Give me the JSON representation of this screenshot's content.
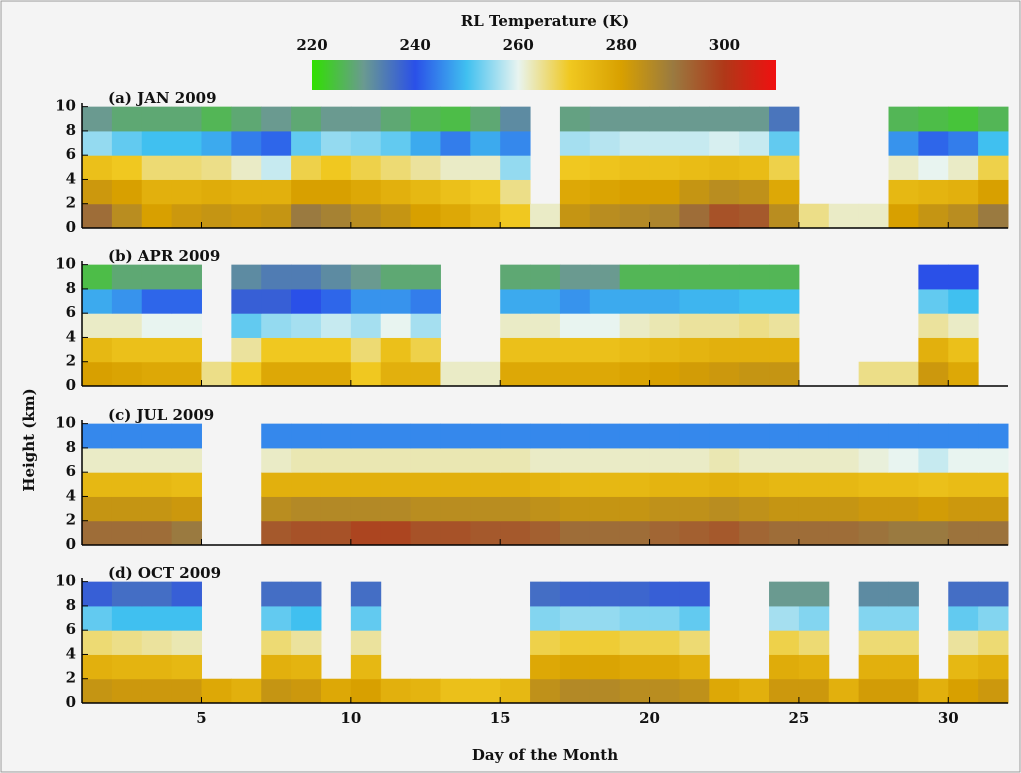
{
  "colorbar": {
    "title": "RL Temperature (K)",
    "clim": [
      220,
      310
    ],
    "ticks": [
      220,
      240,
      260,
      280,
      300
    ],
    "colors": [
      "#30e000",
      "#6a9a90",
      "#2a50e8",
      "#40c0f0",
      "#e8f4f0",
      "#f0c820",
      "#d8a000",
      "#9a7a40",
      "#b03818",
      "#f01010"
    ]
  },
  "ylabel": "Height (km)",
  "xlabel": "Day of the Month",
  "chart_data": [
    {
      "type": "heatmap",
      "title": "(a) JAN 2009",
      "xlim": [
        1,
        32
      ],
      "ylim": [
        0,
        10.3
      ],
      "xticks": [
        5,
        10,
        15,
        20,
        25,
        30
      ],
      "yticks": [
        0,
        2,
        4,
        6,
        8,
        10
      ],
      "x": [
        1,
        2,
        3,
        4,
        5,
        6,
        7,
        8,
        9,
        10,
        11,
        12,
        13,
        14,
        15,
        16,
        17,
        18,
        19,
        20,
        21,
        22,
        23,
        24,
        25,
        26,
        27,
        28,
        29,
        30,
        31,
        32
      ],
      "y": [
        0,
        2,
        4,
        6,
        8,
        10
      ],
      "values": [
        [
          292,
          285,
          280,
          282,
          283,
          282,
          283,
          290,
          288,
          285,
          283,
          280,
          278,
          275,
          270,
          262,
          283,
          285,
          286,
          287,
          292,
          296,
          295,
          285,
          265,
          262,
          262,
          280,
          283,
          285,
          290
        ],
        [
          282,
          280,
          276,
          276,
          277,
          276,
          276,
          280,
          280,
          278,
          276,
          274,
          272,
          270,
          265,
          null,
          278,
          279,
          280,
          280,
          283,
          285,
          284,
          278,
          null,
          null,
          null,
          274,
          275,
          276,
          280
        ],
        [
          272,
          270,
          266,
          266,
          265,
          262,
          258,
          268,
          270,
          268,
          266,
          264,
          262,
          262,
          255,
          null,
          270,
          271,
          272,
          272,
          273,
          274,
          273,
          268,
          null,
          null,
          null,
          262,
          260,
          262,
          268
        ],
        [
          255,
          252,
          250,
          250,
          248,
          244,
          242,
          252,
          255,
          254,
          252,
          248,
          244,
          248,
          245,
          null,
          256,
          257,
          258,
          258,
          258,
          259,
          258,
          252,
          null,
          null,
          null,
          246,
          242,
          244,
          250
        ],
        [
          230,
          228,
          228,
          228,
          226,
          228,
          230,
          228,
          230,
          230,
          228,
          226,
          225,
          228,
          232,
          null,
          229,
          230,
          230,
          230,
          230,
          230,
          230,
          235,
          null,
          null,
          null,
          226,
          225,
          224,
          226
        ]
      ]
    },
    {
      "type": "heatmap",
      "title": "(b) APR 2009",
      "xlim": [
        1,
        32
      ],
      "ylim": [
        0,
        10.3
      ],
      "xticks": [
        5,
        10,
        15,
        20,
        25,
        30
      ],
      "yticks": [
        0,
        2,
        4,
        6,
        8,
        10
      ],
      "x": [
        1,
        2,
        3,
        4,
        5,
        6,
        7,
        8,
        9,
        10,
        11,
        12,
        13,
        14,
        15,
        16,
        17,
        18,
        19,
        20,
        21,
        22,
        23,
        24,
        25,
        26,
        27,
        28,
        29,
        30,
        31,
        32
      ],
      "y": [
        0,
        2,
        4,
        6,
        8,
        10
      ],
      "values": [
        [
          280,
          279,
          278,
          278,
          265,
          270,
          278,
          278,
          278,
          270,
          276,
          276,
          262,
          262,
          278,
          278,
          278,
          278,
          279,
          280,
          281,
          282,
          283,
          283,
          null,
          null,
          265,
          265,
          282,
          278,
          null
        ],
        [
          274,
          272,
          272,
          272,
          null,
          264,
          270,
          270,
          270,
          266,
          272,
          268,
          null,
          null,
          272,
          272,
          272,
          272,
          273,
          274,
          275,
          276,
          276,
          276,
          null,
          null,
          null,
          null,
          276,
          272,
          null
        ],
        [
          262,
          262,
          260,
          260,
          null,
          252,
          255,
          256,
          258,
          256,
          260,
          256,
          null,
          null,
          262,
          262,
          260,
          260,
          262,
          263,
          264,
          264,
          265,
          264,
          null,
          null,
          null,
          null,
          264,
          262,
          null
        ],
        [
          248,
          246,
          242,
          242,
          null,
          238,
          238,
          240,
          242,
          246,
          246,
          244,
          null,
          null,
          248,
          248,
          246,
          248,
          248,
          248,
          249,
          249,
          250,
          250,
          null,
          null,
          null,
          null,
          252,
          250,
          null
        ],
        [
          225,
          228,
          228,
          228,
          null,
          232,
          234,
          234,
          232,
          230,
          228,
          228,
          null,
          null,
          228,
          228,
          230,
          230,
          226,
          226,
          226,
          226,
          226,
          226,
          null,
          null,
          null,
          null,
          240,
          240,
          null
        ]
      ]
    },
    {
      "type": "heatmap",
      "title": "(c) JUL 2009",
      "xlim": [
        1,
        32
      ],
      "ylim": [
        0,
        10.3
      ],
      "xticks": [
        5,
        10,
        15,
        20,
        25,
        30
      ],
      "yticks": [
        0,
        2,
        4,
        6,
        8,
        10
      ],
      "x": [
        1,
        2,
        3,
        4,
        5,
        6,
        7,
        8,
        9,
        10,
        11,
        12,
        13,
        14,
        15,
        16,
        17,
        18,
        19,
        20,
        21,
        22,
        23,
        24,
        25,
        26,
        27,
        28,
        29,
        30,
        31,
        32
      ],
      "y": [
        0,
        2,
        4,
        6,
        8,
        10
      ],
      "values": [
        [
          292,
          292,
          292,
          290,
          null,
          null,
          295,
          296,
          296,
          298,
          298,
          296,
          296,
          295,
          295,
          294,
          292,
          292,
          292,
          293,
          294,
          295,
          293,
          292,
          292,
          292,
          291,
          290,
          290,
          291,
          291
        ],
        [
          283,
          283,
          283,
          282,
          null,
          null,
          285,
          286,
          286,
          286,
          286,
          285,
          285,
          285,
          285,
          284,
          283,
          283,
          283,
          284,
          284,
          285,
          284,
          283,
          283,
          283,
          282,
          282,
          281,
          282,
          282
        ],
        [
          274,
          274,
          274,
          273,
          null,
          null,
          276,
          276,
          276,
          276,
          276,
          276,
          276,
          276,
          276,
          275,
          274,
          274,
          274,
          275,
          275,
          276,
          275,
          274,
          274,
          274,
          273,
          273,
          272,
          273,
          273
        ],
        [
          262,
          262,
          262,
          262,
          null,
          null,
          262,
          263,
          263,
          263,
          263,
          263,
          263,
          263,
          263,
          262,
          262,
          262,
          262,
          262,
          262,
          263,
          262,
          262,
          262,
          262,
          261,
          260,
          258,
          260,
          260
        ],
        [
          245,
          245,
          245,
          245,
          null,
          null,
          245,
          245,
          245,
          245,
          245,
          245,
          245,
          245,
          245,
          245,
          245,
          245,
          245,
          245,
          245,
          245,
          245,
          245,
          245,
          245,
          245,
          245,
          245,
          245,
          245
        ]
      ]
    },
    {
      "type": "heatmap",
      "title": "(d) OCT 2009",
      "xlim": [
        1,
        32
      ],
      "ylim": [
        0,
        10.3
      ],
      "xticks": [
        5,
        10,
        15,
        20,
        25,
        30
      ],
      "yticks": [
        0,
        2,
        4,
        6,
        8,
        10
      ],
      "x": [
        1,
        2,
        3,
        4,
        5,
        6,
        7,
        8,
        9,
        10,
        11,
        12,
        13,
        14,
        15,
        16,
        17,
        18,
        19,
        20,
        21,
        22,
        23,
        24,
        25,
        26,
        27,
        28,
        29,
        30,
        31,
        32
      ],
      "y": [
        0,
        2,
        4,
        6,
        8,
        10
      ],
      "values": [
        [
          283,
          282,
          282,
          282,
          278,
          276,
          283,
          282,
          278,
          280,
          276,
          275,
          272,
          272,
          274,
          284,
          286,
          286,
          285,
          285,
          284,
          278,
          276,
          282,
          282,
          276,
          281,
          281,
          276,
          280,
          282
        ],
        [
          276,
          275,
          275,
          274,
          null,
          null,
          276,
          275,
          null,
          274,
          null,
          null,
          null,
          null,
          null,
          278,
          279,
          279,
          278,
          278,
          276,
          null,
          null,
          277,
          276,
          null,
          276,
          276,
          null,
          274,
          276
        ],
        [
          266,
          265,
          264,
          263,
          null,
          null,
          266,
          264,
          null,
          264,
          null,
          null,
          null,
          null,
          null,
          268,
          269,
          269,
          268,
          268,
          266,
          null,
          null,
          268,
          266,
          null,
          266,
          266,
          null,
          264,
          266
        ],
        [
          252,
          250,
          250,
          250,
          null,
          null,
          252,
          250,
          null,
          252,
          null,
          null,
          null,
          null,
          null,
          254,
          255,
          255,
          254,
          254,
          252,
          null,
          null,
          256,
          254,
          null,
          254,
          254,
          null,
          252,
          254
        ],
        [
          238,
          236,
          236,
          238,
          null,
          null,
          236,
          236,
          null,
          236,
          null,
          null,
          null,
          null,
          null,
          236,
          237,
          237,
          237,
          238,
          238,
          null,
          null,
          230,
          230,
          null,
          232,
          232,
          null,
          236,
          236
        ]
      ]
    }
  ]
}
